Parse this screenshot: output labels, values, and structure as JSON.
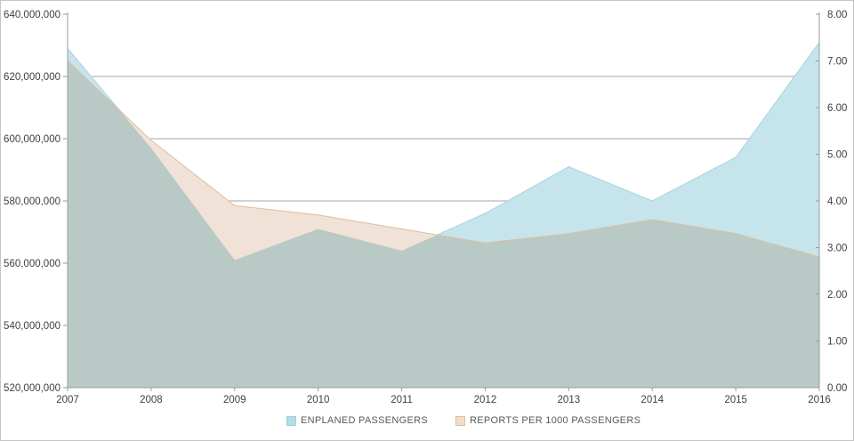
{
  "chart_data": {
    "type": "area",
    "title": "",
    "x_labels": [
      "2007",
      "2008",
      "2009",
      "2010",
      "2011",
      "2012",
      "2013",
      "2014",
      "2015",
      "2016"
    ],
    "series": [
      {
        "name": "ENPLANED PASSENGERS",
        "axis": "left",
        "color": "#c5e4ec",
        "edge_color": "#a9d4e0",
        "values": [
          629000000,
          597000000,
          561000000,
          571000000,
          564000000,
          576000000,
          591000000,
          580000000,
          594000000,
          631000000
        ]
      },
      {
        "name": "REPORTS PER 1000 PASSENGERS",
        "axis": "right",
        "color": "#f1e2d7",
        "edge_color": "#dcbf9d",
        "values": [
          7.0,
          5.3,
          3.9,
          3.7,
          3.4,
          3.1,
          3.3,
          3.6,
          3.3,
          2.8
        ]
      }
    ],
    "overlap_color": "#b9c9c6",
    "left_axis": {
      "min": 520000000,
      "max": 640000000,
      "step": 20000000,
      "tick_labels": [
        "520,000,000",
        "540,000,000",
        "560,000,000",
        "580,000,000",
        "600,000,000",
        "620,000,000",
        "640,000,000"
      ]
    },
    "right_axis": {
      "min": 0,
      "max": 8,
      "step": 1,
      "tick_labels": [
        "0.00",
        "1.00",
        "2.00",
        "3.00",
        "4.00",
        "5.00",
        "6.00",
        "7.00",
        "8.00"
      ]
    },
    "grid": "horizontal",
    "gridline_color": "#a6a6a6",
    "axis_line_color": "#9b9b9b",
    "axis_text_color": "#3f3f3f",
    "legend_position": "bottom"
  }
}
